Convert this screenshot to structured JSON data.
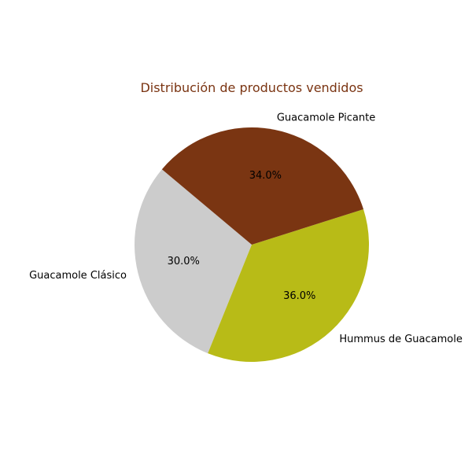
{
  "chart_data": {
    "type": "pie",
    "title": "Distribución de productos vendidos",
    "title_color": "#7a3412",
    "start_angle_deg": 140,
    "direction": "counterclockwise",
    "slices": [
      {
        "label": "Guacamole Clásico",
        "value": 30.0,
        "pct_text": "30.0%",
        "color": "#cccccc"
      },
      {
        "label": "Hummus de Guacamole",
        "value": 36.0,
        "pct_text": "36.0%",
        "color": "#b8bb17"
      },
      {
        "label": "Guacamole Picante",
        "value": 34.0,
        "pct_text": "34.0%",
        "color": "#7a3512"
      }
    ],
    "legend": "none",
    "grid": false
  }
}
